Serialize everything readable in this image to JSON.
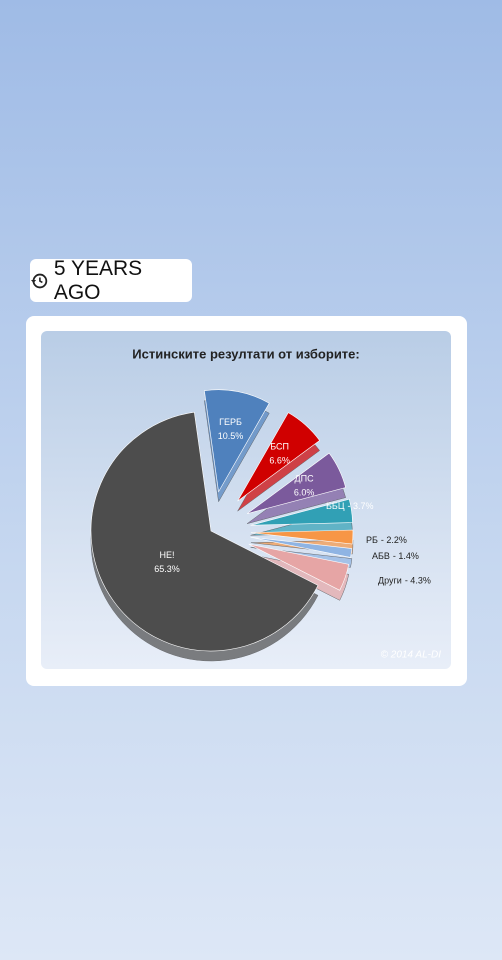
{
  "badge": "5 YEARS AGO",
  "chart_data": {
    "type": "pie",
    "title": "Истинските резултати от изборите:",
    "categories": [
      "ГЕРБ",
      "БСП",
      "ДПС",
      "ББЦ",
      "РБ",
      "АБВ",
      "Други",
      "НЕ!"
    ],
    "values": [
      10.5,
      6.6,
      6.0,
      3.7,
      2.2,
      1.4,
      4.3,
      65.3
    ],
    "value_labels": [
      "10.5%",
      "6.6%",
      "6.0%",
      "- 3.7%",
      "- 2.2%",
      "- 1.4%",
      "- 4.3%",
      "65.3%"
    ],
    "colors": [
      "#4f81bd",
      "#d00000",
      "#7b5a9c",
      "#31a0b5",
      "#f79646",
      "#8fb4e3",
      "#e6a5a5",
      "#4d4d4d"
    ],
    "watermark": "© 2014 AL-DI"
  }
}
